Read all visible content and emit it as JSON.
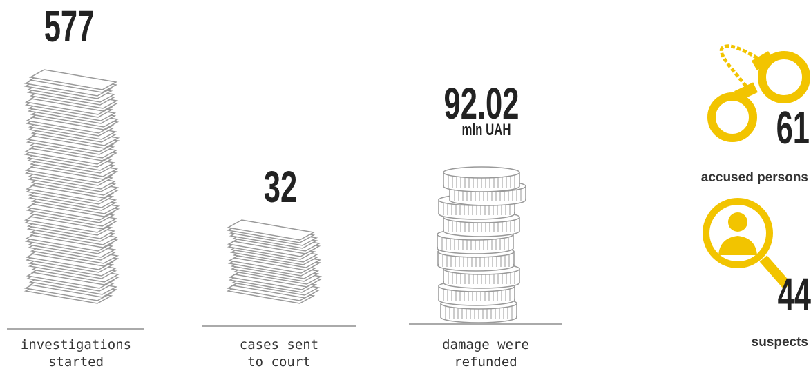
{
  "stats": [
    {
      "value": 577,
      "label": [
        "investigations",
        "started"
      ]
    },
    {
      "value": 32,
      "label": [
        "cases sent",
        "to court"
      ]
    },
    {
      "value": 92.02,
      "unit": "mln UAH",
      "label": [
        "damage were",
        "refunded"
      ]
    }
  ],
  "people": [
    {
      "value": 61,
      "label": "accused persons"
    },
    {
      "value": 44,
      "label": "suspects"
    }
  ]
}
